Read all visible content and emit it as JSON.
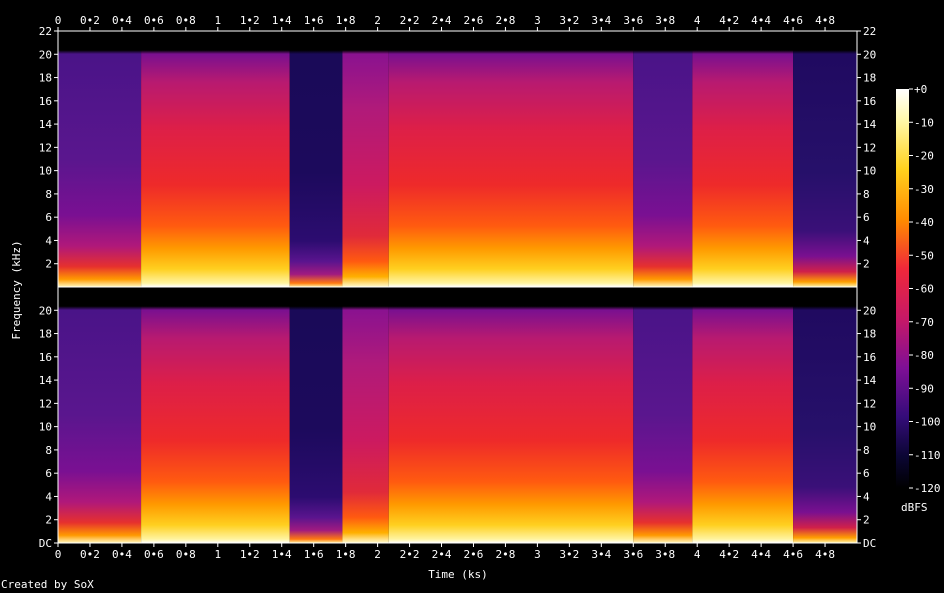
{
  "chart_data": {
    "type": "heatmap",
    "xlabel": "Time (ks)",
    "ylabel": "Frequency (kHz)",
    "xlim": [
      0,
      5
    ],
    "ylim": [
      0,
      22
    ],
    "x_ticks": [
      "0",
      "0•2",
      "0•4",
      "0•6",
      "0•8",
      "1",
      "1•2",
      "1•4",
      "1•6",
      "1•8",
      "2",
      "2•2",
      "2•4",
      "2•6",
      "2•8",
      "3",
      "3•2",
      "3•4",
      "3•6",
      "3•8",
      "4",
      "4•2",
      "4•4",
      "4•6",
      "4•8"
    ],
    "y_ticks_upper": [
      "2",
      "4",
      "6",
      "8",
      "10",
      "12",
      "14",
      "16",
      "18",
      "20",
      "22"
    ],
    "y_ticks_lower": [
      "DC",
      "2",
      "4",
      "6",
      "8",
      "10",
      "12",
      "14",
      "16",
      "18",
      "20"
    ],
    "channels": 2,
    "colorbar": {
      "label": "dBFS",
      "range": [
        -120,
        0
      ],
      "ticks": [
        "+0",
        "-10",
        "-20",
        "-30",
        "-40",
        "-50",
        "-60",
        "-70",
        "-80",
        "-90",
        "-100",
        "-110",
        "-120"
      ]
    },
    "segments": [
      {
        "start": 0.0,
        "end": 0.52,
        "level": "mid"
      },
      {
        "start": 0.52,
        "end": 1.45,
        "level": "loud"
      },
      {
        "start": 1.45,
        "end": 1.78,
        "level": "quiet"
      },
      {
        "start": 1.78,
        "end": 2.07,
        "level": "build"
      },
      {
        "start": 2.07,
        "end": 3.6,
        "level": "loud"
      },
      {
        "start": 3.6,
        "end": 3.97,
        "level": "mid"
      },
      {
        "start": 3.97,
        "end": 4.6,
        "level": "loud"
      },
      {
        "start": 4.6,
        "end": 5.0,
        "level": "midquiet"
      }
    ]
  },
  "footer": {
    "credit": "Created by SoX"
  }
}
